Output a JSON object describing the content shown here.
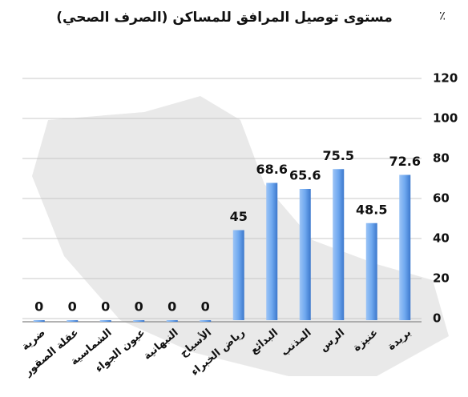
{
  "chart_data": {
    "type": "bar",
    "title": "مستوى توصيل المرافق للمساكن (الصرف الصحي)",
    "y_label": "٪",
    "categories": [
      "بريدة",
      "عنيزة",
      "الرس",
      "المذنب",
      "البدائع",
      "رياض الخبراء",
      "الأسياح",
      "النبهانية",
      "عيون الجواء",
      "الشماسية",
      "عقلة الصقور",
      "ضرية"
    ],
    "values": [
      72.6,
      48.5,
      75.5,
      65.6,
      68.6,
      45,
      0,
      0,
      0,
      0,
      0,
      0
    ],
    "color": "#6fa8ef",
    "ylim": [
      0,
      120
    ],
    "yticks": [
      0,
      20,
      40,
      60,
      80,
      100,
      120
    ],
    "grid": true
  }
}
